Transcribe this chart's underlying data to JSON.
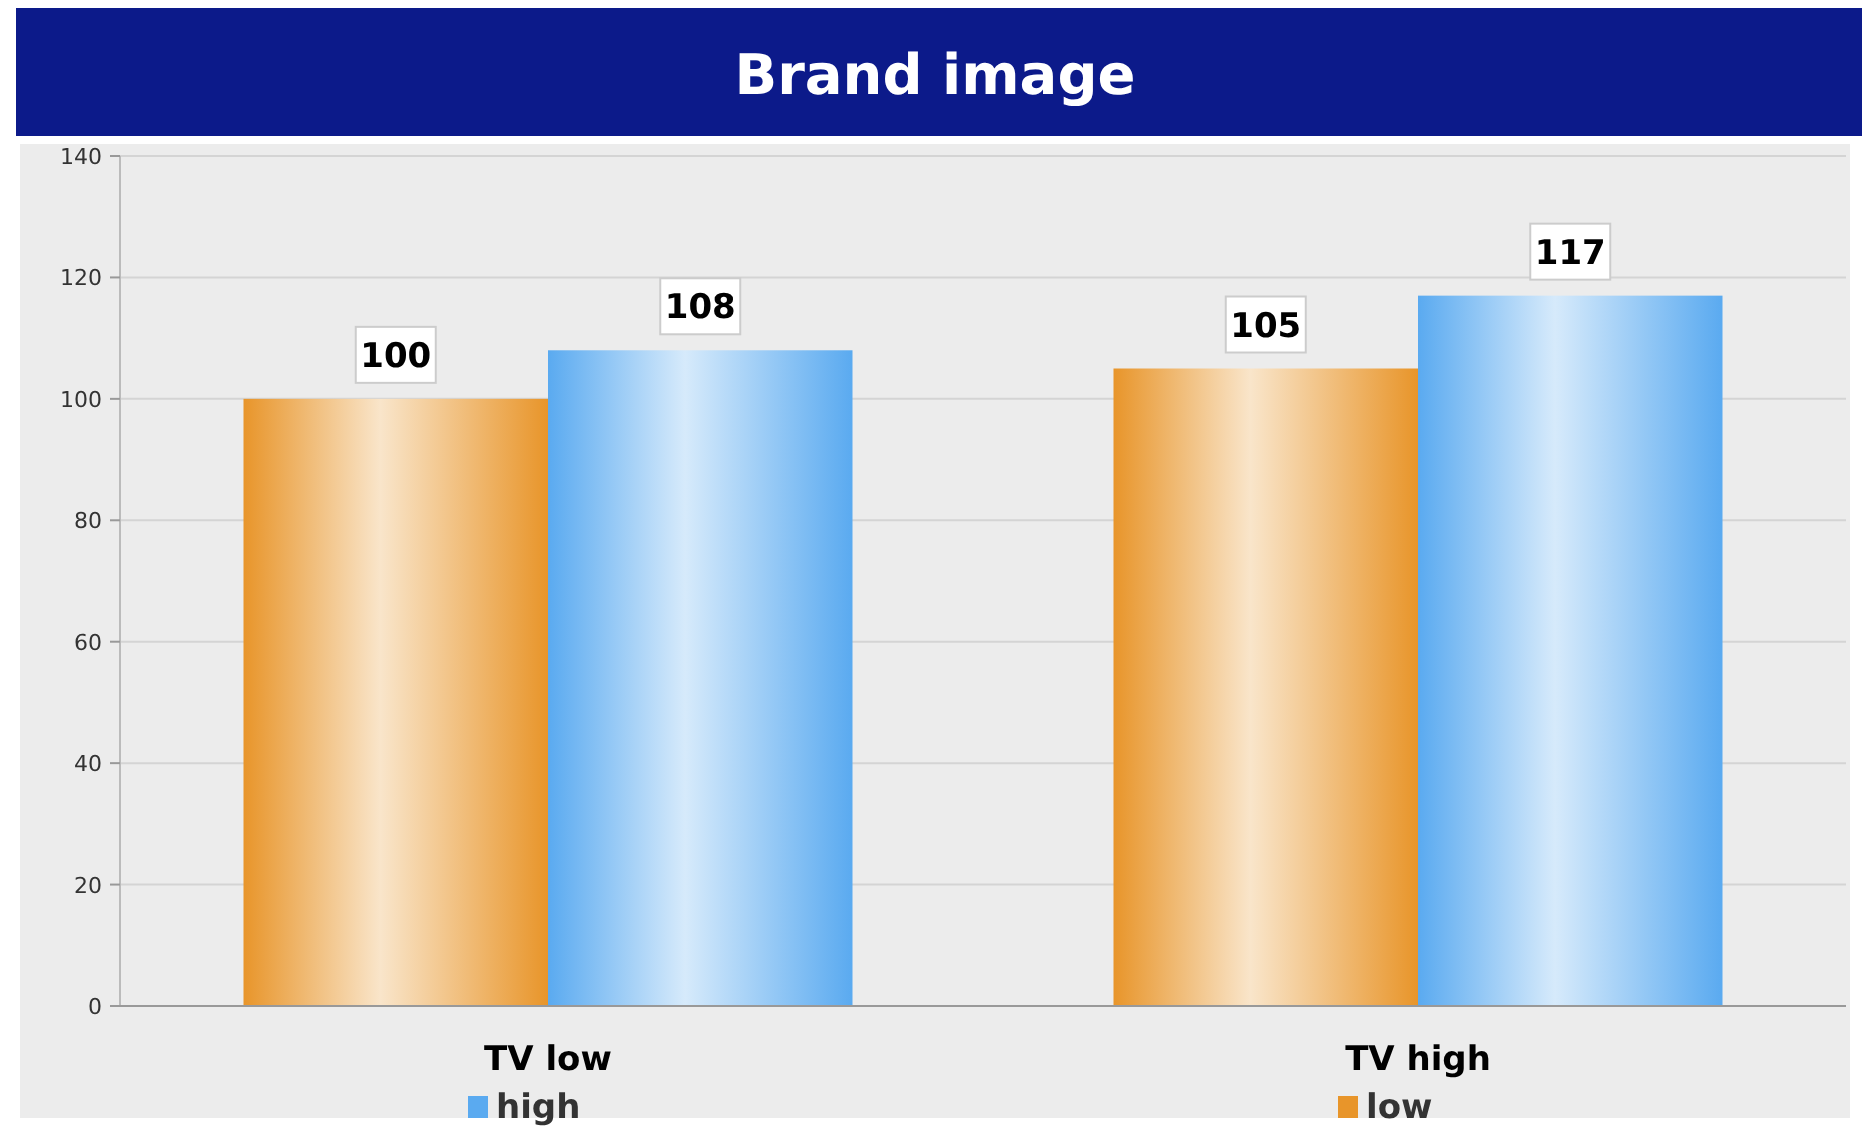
{
  "chart_data": {
    "type": "bar",
    "title": "Brand image",
    "categories": [
      "TV low",
      "TV high"
    ],
    "series": [
      {
        "name": "low",
        "color": "#e8952a",
        "values": [
          100,
          105
        ]
      },
      {
        "name": "high",
        "color": "#5aaaf0",
        "values": [
          108,
          117
        ]
      }
    ],
    "ylim": [
      0,
      140
    ],
    "yticks": [
      0,
      20,
      40,
      60,
      80,
      100,
      120,
      140
    ],
    "grid": "y",
    "data_labels": true,
    "legend": "bottom"
  }
}
